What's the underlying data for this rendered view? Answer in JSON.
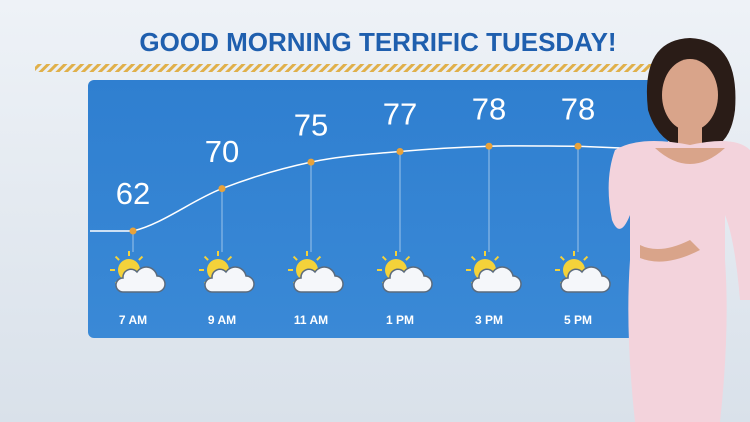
{
  "chart_data": {
    "type": "line",
    "title": "GOOD MORNING TERRIFIC TUESDAY!",
    "categories": [
      "7 AM",
      "9 AM",
      "11 AM",
      "1 PM",
      "3 PM",
      "5 PM"
    ],
    "values": [
      62,
      70,
      75,
      77,
      78,
      78
    ],
    "color": "#ffffff",
    "marker_color": "#e8a23a"
  }
}
